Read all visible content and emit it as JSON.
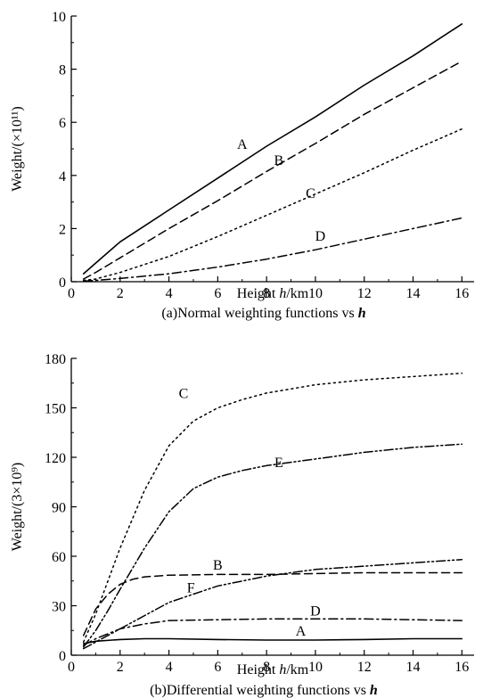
{
  "chart_data": [
    {
      "type": "line",
      "caption_prefix": "(a)Normal weighting functions vs ",
      "caption_var": "h",
      "xlabel_prefix": "Height ",
      "xlabel_var": "h",
      "xlabel_unit": "/km",
      "ylabel": "Weight/(×10¹¹)",
      "xlim": [
        0,
        16.5
      ],
      "ylim": [
        0,
        10
      ],
      "xticks": [
        0,
        2,
        4,
        6,
        8,
        10,
        12,
        14,
        16
      ],
      "yticks": [
        0,
        2,
        4,
        6,
        8,
        10
      ],
      "grid": false,
      "series": [
        {
          "name": "A",
          "style": "solid",
          "label_at": [
            7,
            5.0
          ],
          "x": [
            0.5,
            1,
            2,
            3,
            4,
            6,
            8,
            10,
            12,
            14,
            16
          ],
          "y": [
            0.3,
            0.7,
            1.5,
            2.1,
            2.7,
            3.9,
            5.1,
            6.2,
            7.4,
            8.5,
            9.7
          ]
        },
        {
          "name": "B",
          "style": "dashed",
          "label_at": [
            8.5,
            4.4
          ],
          "x": [
            0.5,
            1,
            2,
            3,
            4,
            6,
            8,
            10,
            12,
            14,
            16
          ],
          "y": [
            0.1,
            0.35,
            0.9,
            1.45,
            2.0,
            3.05,
            4.15,
            5.2,
            6.3,
            7.3,
            8.3
          ]
        },
        {
          "name": "C",
          "style": "dotted",
          "label_at": [
            9.8,
            3.15
          ],
          "x": [
            0.5,
            1,
            2,
            4,
            6,
            8,
            10,
            12,
            14,
            16
          ],
          "y": [
            0.05,
            0.1,
            0.35,
            0.95,
            1.7,
            2.5,
            3.3,
            4.1,
            4.95,
            5.75
          ]
        },
        {
          "name": "D",
          "style": "dashdot",
          "label_at": [
            10.2,
            1.55
          ],
          "x": [
            0.5,
            1,
            2,
            4,
            6,
            8,
            10,
            12,
            14,
            16
          ],
          "y": [
            0.02,
            0.05,
            0.12,
            0.3,
            0.55,
            0.85,
            1.2,
            1.6,
            2.0,
            2.4
          ]
        }
      ]
    },
    {
      "type": "line",
      "caption_prefix": "(b)Differential weighting functions vs ",
      "caption_var": "h",
      "xlabel_prefix": "Height ",
      "xlabel_var": "h",
      "xlabel_unit": "/km",
      "ylabel": "Weight/(3×10⁹)",
      "xlim": [
        0,
        16.5
      ],
      "ylim": [
        0,
        180
      ],
      "xticks": [
        0,
        2,
        4,
        6,
        8,
        10,
        12,
        14,
        16
      ],
      "yticks": [
        0,
        30,
        60,
        90,
        120,
        150,
        180
      ],
      "grid": false,
      "series": [
        {
          "name": "C",
          "style": "dotted",
          "label_at": [
            4.6,
            156
          ],
          "x": [
            0.5,
            1,
            1.5,
            2,
            3,
            4,
            5,
            6,
            7,
            8,
            10,
            12,
            14,
            16
          ],
          "y": [
            8,
            25,
            45,
            65,
            100,
            127,
            142,
            150,
            155,
            159,
            164,
            167,
            169,
            171
          ]
        },
        {
          "name": "E",
          "style": "dashdot2",
          "label_at": [
            8.5,
            114
          ],
          "x": [
            0.5,
            1,
            1.5,
            2,
            3,
            4,
            5,
            6,
            7,
            8,
            10,
            12,
            14,
            16
          ],
          "y": [
            5,
            15,
            27,
            40,
            65,
            87,
            101,
            108,
            112,
            115,
            119,
            123,
            126,
            128
          ]
        },
        {
          "name": "B",
          "style": "dashed",
          "label_at": [
            6.0,
            52
          ],
          "x": [
            0.5,
            1,
            1.5,
            2,
            2.5,
            3,
            4,
            6,
            8,
            10,
            12,
            14,
            16
          ],
          "y": [
            12,
            28,
            37,
            43,
            46,
            47.5,
            48.5,
            49,
            49,
            49.5,
            50,
            50,
            50
          ]
        },
        {
          "name": "F",
          "style": "dashdot2",
          "label_at": [
            4.9,
            38
          ],
          "x": [
            0.5,
            1,
            1.5,
            2,
            3,
            4,
            5,
            6,
            7,
            8,
            10,
            12,
            14,
            16
          ],
          "y": [
            4,
            8,
            12,
            16,
            24,
            32,
            37,
            42,
            45,
            48,
            52,
            54,
            56,
            58
          ]
        },
        {
          "name": "D",
          "style": "dashdot",
          "label_at": [
            10.0,
            24
          ],
          "x": [
            0.5,
            1,
            1.5,
            2,
            3,
            4,
            6,
            8,
            10,
            12,
            14,
            16
          ],
          "y": [
            6,
            10,
            13,
            16,
            19,
            21,
            21.5,
            22,
            22,
            22,
            21.5,
            21
          ]
        },
        {
          "name": "A",
          "style": "solid",
          "label_at": [
            9.4,
            12
          ],
          "x": [
            0.5,
            1,
            2,
            3,
            4,
            6,
            8,
            10,
            12,
            14,
            16
          ],
          "y": [
            7,
            8.5,
            9.5,
            10,
            10,
            9.5,
            9.2,
            9.2,
            9.5,
            10,
            10
          ]
        }
      ]
    }
  ]
}
